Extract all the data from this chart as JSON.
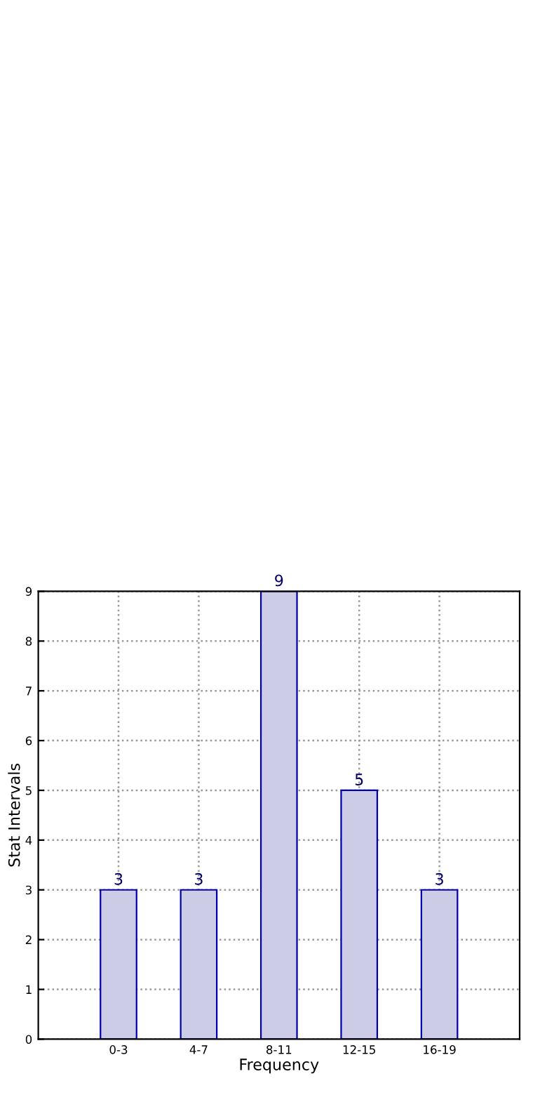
{
  "chart_data": {
    "type": "bar",
    "xlabel": "Frequency",
    "ylabel": "Stat Intervals",
    "categories": [
      "0-3",
      "4-7",
      "8-11",
      "12-15",
      "16-19"
    ],
    "values": [
      3,
      3,
      9,
      5,
      3
    ],
    "color": "#cccce6",
    "ylim": [
      0,
      9
    ],
    "yticks": [
      0,
      1,
      2,
      3,
      4,
      5,
      6,
      7,
      8,
      9
    ],
    "grid": true,
    "data_labels": true
  }
}
